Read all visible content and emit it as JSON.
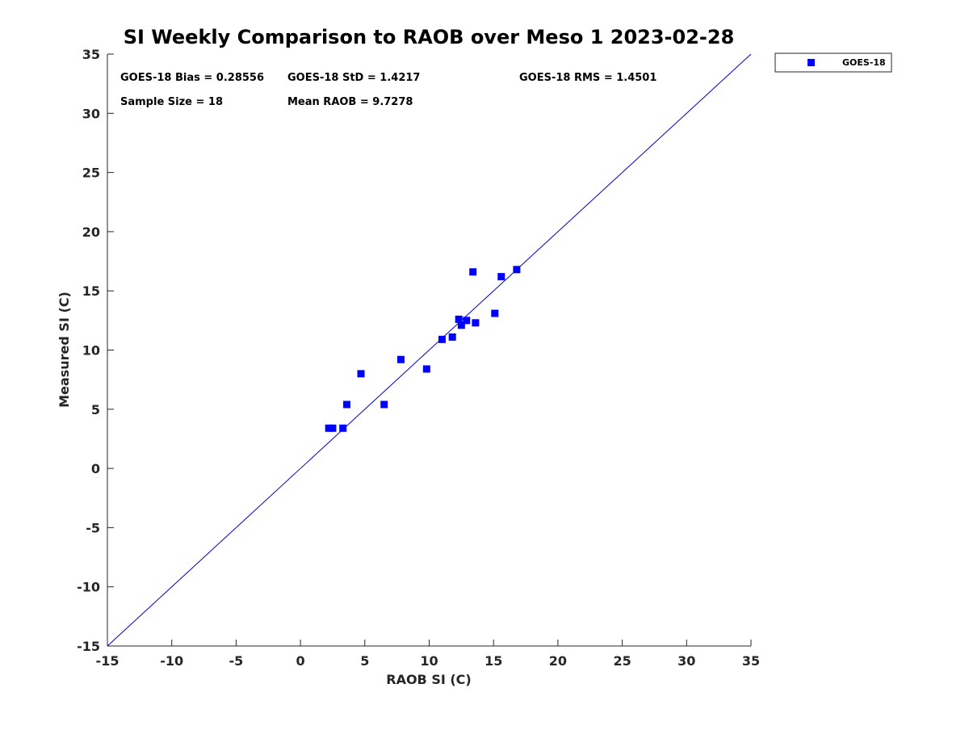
{
  "chart_data": {
    "type": "scatter",
    "title": "SI Weekly Comparison to RAOB over Meso 1 2023-02-28",
    "xlabel": "RAOB SI (C)",
    "ylabel": "Measured SI (C)",
    "xlim": [
      -15,
      35
    ],
    "ylim": [
      -15,
      35
    ],
    "xticks": [
      "-15",
      "-10",
      "-5",
      "0",
      "5",
      "10",
      "15",
      "20",
      "25",
      "30",
      "35"
    ],
    "yticks": [
      "-15",
      "-10",
      "-5",
      "0",
      "5",
      "10",
      "15",
      "20",
      "25",
      "30",
      "35"
    ],
    "grid": false,
    "legend_position": "outside-top-right",
    "reference_line": {
      "from": [
        -15,
        -15
      ],
      "to": [
        35,
        35
      ],
      "color": "#0000cc"
    },
    "stats": {
      "bias": "GOES-18 Bias = 0.28556",
      "std": "GOES-18 StD = 1.4217",
      "rms": "GOES-18 RMS = 1.4501",
      "sample_size": "Sample Size = 18",
      "mean_raob": "Mean RAOB = 9.7278"
    },
    "series": [
      {
        "name": "GOES-18",
        "color": "#0000ff",
        "marker": "square",
        "points": [
          [
            2.2,
            3.4
          ],
          [
            2.5,
            3.4
          ],
          [
            3.3,
            3.4
          ],
          [
            3.6,
            5.4
          ],
          [
            4.7,
            8.0
          ],
          [
            6.5,
            5.4
          ],
          [
            7.8,
            9.2
          ],
          [
            9.8,
            8.4
          ],
          [
            11.0,
            10.9
          ],
          [
            11.8,
            11.1
          ],
          [
            12.3,
            12.6
          ],
          [
            12.5,
            12.1
          ],
          [
            12.9,
            12.5
          ],
          [
            13.4,
            16.6
          ],
          [
            13.6,
            12.3
          ],
          [
            15.1,
            13.1
          ],
          [
            15.6,
            16.2
          ],
          [
            16.8,
            16.8
          ]
        ]
      }
    ]
  }
}
